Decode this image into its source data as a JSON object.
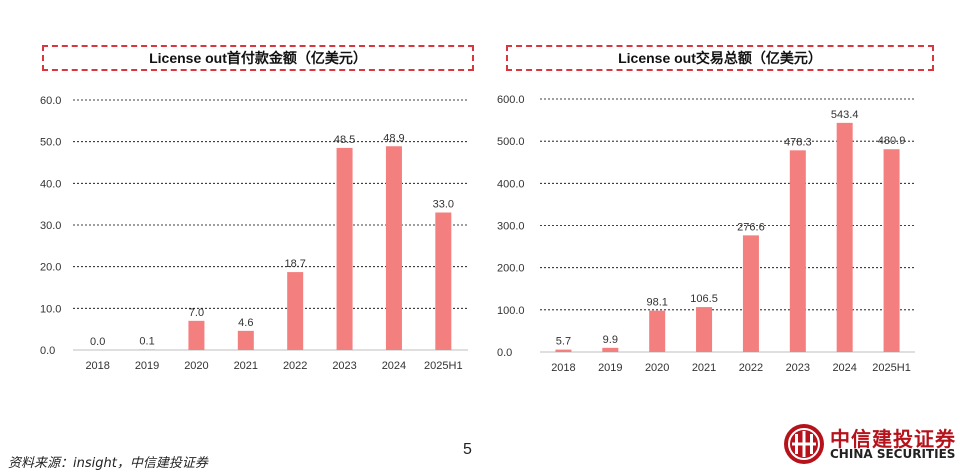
{
  "chart_data": [
    {
      "type": "bar",
      "title": "License out首付款金额（亿美元）",
      "categories": [
        "2018",
        "2019",
        "2020",
        "2021",
        "2022",
        "2023",
        "2024",
        "2025H1"
      ],
      "values": [
        0.0,
        0.1,
        7.0,
        4.6,
        18.7,
        48.5,
        48.9,
        33.0
      ],
      "value_labels": [
        "0.0",
        "0.1",
        "7.0",
        "4.6",
        "18.7",
        "48.5",
        "48.9",
        "33.0"
      ],
      "ylim": [
        0,
        60
      ],
      "yticks": [
        "0.0",
        "10.0",
        "20.0",
        "30.0",
        "40.0",
        "50.0",
        "60.0"
      ],
      "grid": true,
      "color": "#f47f7f"
    },
    {
      "type": "bar",
      "title": "License out交易总额（亿美元）",
      "categories": [
        "2018",
        "2019",
        "2020",
        "2021",
        "2022",
        "2023",
        "2024",
        "2025H1"
      ],
      "values": [
        5.7,
        9.9,
        98.1,
        106.5,
        276.6,
        478.3,
        543.4,
        480.9
      ],
      "value_labels": [
        "5.7",
        "9.9",
        "98.1",
        "106.5",
        "276.6",
        "478.3",
        "543.4",
        "480.9"
      ],
      "ylim": [
        0,
        600
      ],
      "yticks": [
        "0.0",
        "100.0",
        "200.0",
        "300.0",
        "400.0",
        "500.0",
        "600.0"
      ],
      "grid": true,
      "color": "#f47f7f"
    }
  ],
  "footnote": "资料来源：insight，中信建投证券",
  "page_number": "5",
  "brand": {
    "name_cn": "中信建投证券",
    "name_en": "CHINA SECURITIES",
    "color": "#b5121b"
  }
}
